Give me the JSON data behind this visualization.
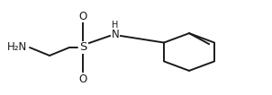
{
  "bg_color": "#ffffff",
  "line_color": "#1a1a1a",
  "line_width": 1.4,
  "text_color": "#1a1a1a",
  "font_size_large": 8.5,
  "font_size_small": 7.0,
  "figsize": [
    3.02,
    1.06
  ],
  "dpi": 100,
  "h2n_text": "H₂N",
  "S_text": "S",
  "O_text": "O",
  "N_text": "N",
  "H_text": "H"
}
